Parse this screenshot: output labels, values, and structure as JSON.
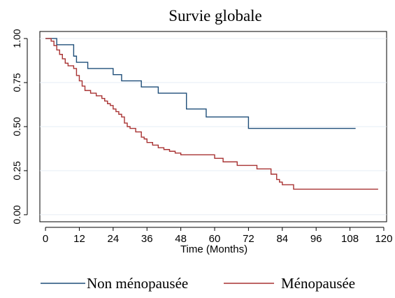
{
  "chart_data": {
    "type": "line",
    "title": "Survie globale",
    "xlabel": "Time (Months)",
    "ylabel": "",
    "xlim": [
      -2,
      121
    ],
    "ylim": [
      -0.04,
      1.04
    ],
    "x_ticks": [
      0,
      12,
      24,
      36,
      48,
      60,
      72,
      84,
      96,
      108,
      120
    ],
    "y_ticks": [
      0.0,
      0.25,
      0.5,
      0.75,
      1.0
    ],
    "y_tick_labels": [
      "0.00",
      "0.25",
      "0.50",
      "0.75",
      "1.00"
    ],
    "grid": "horizontal",
    "legend_position": "bottom",
    "series": [
      {
        "name": "Non ménopausée",
        "color": "#1f4e79",
        "step": true,
        "x": [
          0,
          4,
          10,
          11,
          15,
          24,
          27,
          34,
          40,
          50,
          57,
          72,
          110
        ],
        "y": [
          1.0,
          0.965,
          0.9,
          0.865,
          0.83,
          0.795,
          0.76,
          0.725,
          0.69,
          0.6,
          0.555,
          0.49,
          0.49
        ]
      },
      {
        "name": "Ménopausée",
        "color": "#a83232",
        "step": true,
        "x": [
          0,
          2,
          3,
          4,
          5,
          6,
          7,
          8,
          10,
          11,
          12,
          13,
          14,
          16,
          18,
          20,
          21,
          22,
          23,
          24,
          25,
          26,
          27,
          28,
          29,
          30,
          32,
          34,
          35,
          36,
          38,
          40,
          42,
          44,
          46,
          48,
          60,
          63,
          68,
          75,
          80,
          82,
          83,
          84,
          88,
          118
        ],
        "y": [
          1.0,
          0.985,
          0.96,
          0.935,
          0.91,
          0.885,
          0.86,
          0.845,
          0.83,
          0.79,
          0.76,
          0.73,
          0.705,
          0.69,
          0.675,
          0.66,
          0.645,
          0.63,
          0.62,
          0.6,
          0.585,
          0.57,
          0.555,
          0.52,
          0.5,
          0.49,
          0.47,
          0.44,
          0.43,
          0.41,
          0.395,
          0.38,
          0.37,
          0.36,
          0.35,
          0.34,
          0.32,
          0.3,
          0.28,
          0.26,
          0.23,
          0.2,
          0.185,
          0.17,
          0.145,
          0.145
        ]
      }
    ]
  }
}
